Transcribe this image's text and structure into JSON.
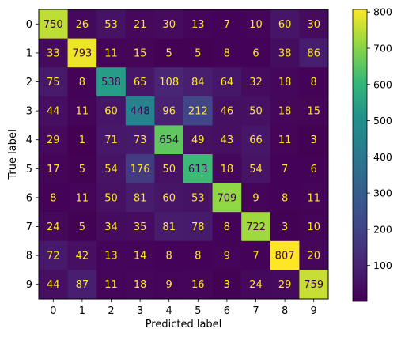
{
  "chart_data": {
    "type": "heatmap",
    "title": "",
    "xlabel": "Predicted label",
    "ylabel": "True label",
    "x_categories": [
      "0",
      "1",
      "2",
      "3",
      "4",
      "5",
      "6",
      "7",
      "8",
      "9"
    ],
    "y_categories": [
      "0",
      "1",
      "2",
      "3",
      "4",
      "5",
      "6",
      "7",
      "8",
      "9"
    ],
    "values": [
      [
        750,
        26,
        53,
        21,
        30,
        13,
        7,
        10,
        60,
        30
      ],
      [
        33,
        793,
        11,
        15,
        5,
        5,
        8,
        6,
        38,
        86
      ],
      [
        75,
        8,
        538,
        65,
        108,
        84,
        64,
        32,
        18,
        8
      ],
      [
        44,
        11,
        60,
        448,
        96,
        212,
        46,
        50,
        18,
        15
      ],
      [
        29,
        1,
        71,
        73,
        654,
        49,
        43,
        66,
        11,
        3
      ],
      [
        17,
        5,
        54,
        176,
        50,
        613,
        18,
        54,
        7,
        6
      ],
      [
        8,
        11,
        50,
        81,
        60,
        53,
        709,
        9,
        8,
        11
      ],
      [
        24,
        5,
        34,
        35,
        81,
        78,
        8,
        722,
        3,
        10
      ],
      [
        72,
        42,
        13,
        14,
        8,
        8,
        9,
        7,
        807,
        20
      ],
      [
        44,
        87,
        11,
        18,
        9,
        16,
        3,
        24,
        29,
        759
      ]
    ],
    "colorscale": "viridis",
    "vmin": 1,
    "vmax": 807,
    "colorbar_ticks": [
      "100",
      "200",
      "300",
      "400",
      "500",
      "600",
      "700",
      "800"
    ],
    "colorbar_tick_values": [
      100,
      200,
      300,
      400,
      500,
      600,
      700,
      800
    ],
    "text_color_dark_cells": "#FDE725",
    "text_color_light_cells": "#440154",
    "grid": false
  }
}
